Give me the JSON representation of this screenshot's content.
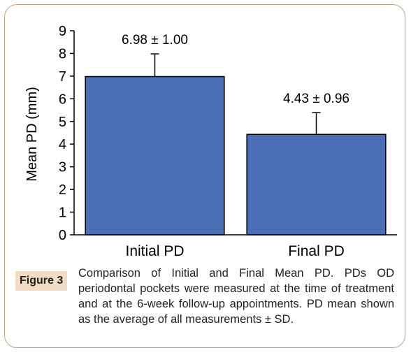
{
  "figure": {
    "label": "Figure 3",
    "caption": "Comparison of Initial and Final Mean PD.  PDs OD periodontal pockets were measured at the time of treatment and at the 6-week follow-up appointments. PD mean shown as the average of all measurements ± SD."
  },
  "colors": {
    "bar": "#4a6fb7",
    "border": "#c9a27a",
    "label_bg": "#f3dcc4"
  },
  "chart_data": {
    "type": "bar",
    "title": "",
    "xlabel": "",
    "ylabel": "Mean PD (mm)",
    "ylim": [
      0,
      9
    ],
    "yticks": [
      0,
      1,
      2,
      3,
      4,
      5,
      6,
      7,
      8,
      9
    ],
    "grid": false,
    "categories": [
      "Initial PD",
      "Final PD"
    ],
    "values": [
      6.98,
      4.43
    ],
    "errors": [
      1.0,
      0.96
    ],
    "data_labels": [
      "6.98 ± 1.00",
      "4.43 ± 0.96"
    ]
  }
}
